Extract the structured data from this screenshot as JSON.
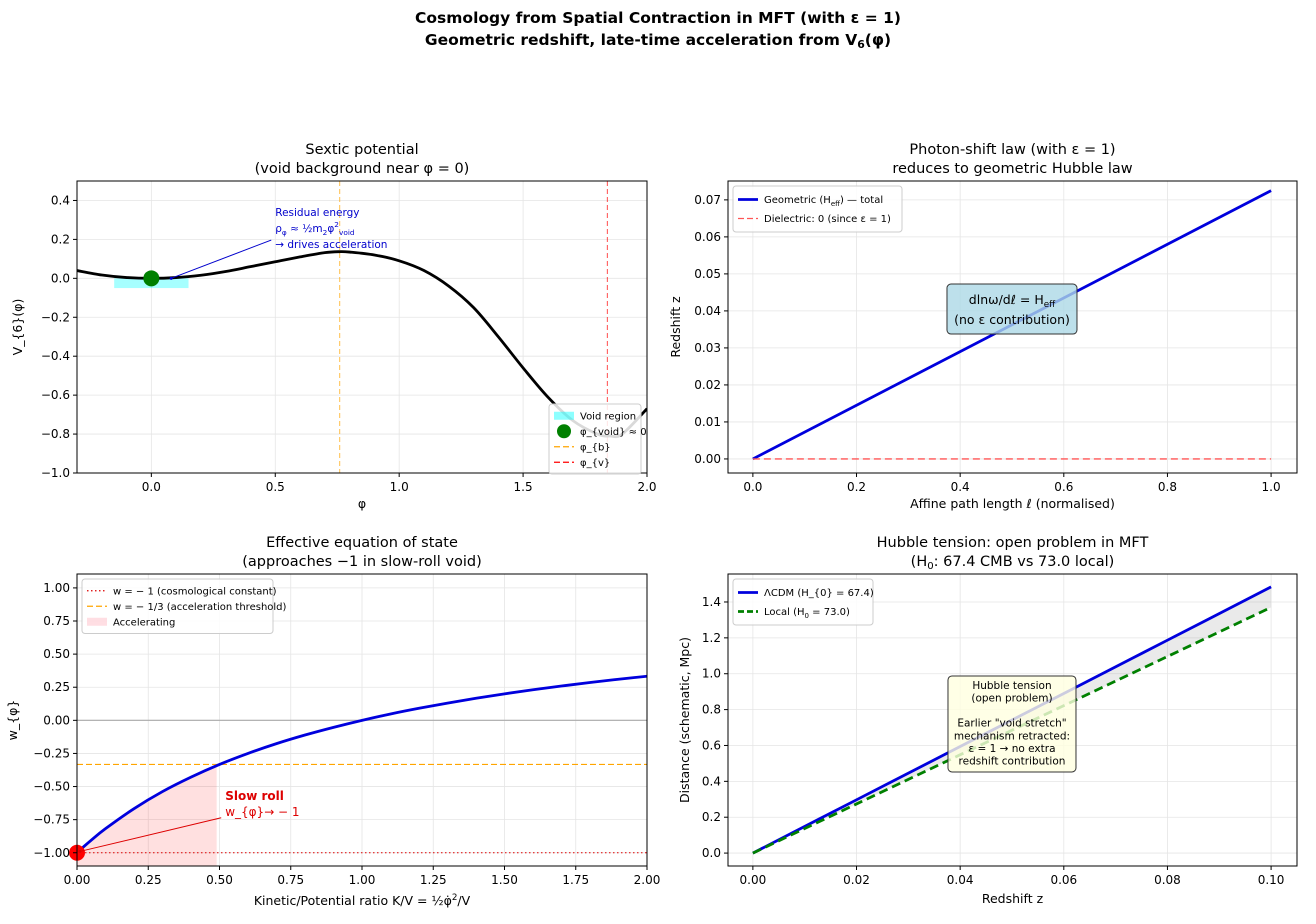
{
  "figure": {
    "title_line1": "Cosmology from Spatial Contraction in MFT (with ε = 1)",
    "title_line2": "Geometric redshift, late-time acceleration from V_{6}(φ)"
  },
  "chart_data": [
    {
      "type": "line",
      "title": [
        "Sextic potential",
        "(void background near φ = 0)"
      ],
      "xlabel": "φ",
      "ylabel": "V_{6}(φ)",
      "xlim": [
        -0.3,
        2.0
      ],
      "ylim": [
        -1.0,
        0.5
      ],
      "xticks": [
        0,
        0.5,
        1,
        1.5,
        2
      ],
      "xtick_labels": [
        "0.0",
        "0.5",
        "1.0",
        "1.5",
        "2.0"
      ],
      "yticks": [
        -1,
        -0.8,
        -0.6,
        -0.4,
        -0.2,
        0,
        0.2,
        0.4
      ],
      "ytick_labels": [
        "−1.0",
        "−0.8",
        "−0.6",
        "−0.4",
        "−0.2",
        "0.0",
        "0.2",
        "0.4"
      ],
      "grid": true,
      "series": [
        {
          "x": [
            -0.3,
            -0.2,
            -0.1,
            0,
            0.1,
            0.2,
            0.3,
            0.4,
            0.5,
            0.6,
            0.7,
            0.76,
            0.8,
            0.9,
            1.0,
            1.1,
            1.2,
            1.3,
            1.4,
            1.5,
            1.6,
            1.7,
            1.8,
            1.85,
            1.9,
            2.0
          ],
          "y": [
            0.04,
            0.017,
            0.004,
            0,
            0.004,
            0.016,
            0.035,
            0.06,
            0.085,
            0.11,
            0.132,
            0.137,
            0.135,
            0.12,
            0.09,
            0.04,
            -0.04,
            -0.15,
            -0.3,
            -0.46,
            -0.61,
            -0.73,
            -0.8,
            -0.81,
            -0.8,
            -0.67
          ],
          "color": "#000000",
          "style": "solid"
        }
      ],
      "spans": [
        {
          "x": [
            -0.15,
            0.15
          ],
          "y": [
            -0.05,
            0.0
          ],
          "color": "#00ffff",
          "opacity": 0.35
        }
      ],
      "vlines": [
        {
          "x": 0.76,
          "color": "#ffa500",
          "style": "dashed"
        },
        {
          "x": 1.84,
          "color": "#ff0000",
          "style": "dashed"
        }
      ],
      "points": [
        {
          "x": 0,
          "y": 0,
          "color": "#008000"
        }
      ],
      "annotations": [
        {
          "lines": [
            "Residual energy",
            "ρ_{φ} ≈ ½m_{2}φ^{2}_{void}",
            "→ drives acceleration"
          ],
          "xytext": [
            0.5,
            0.32
          ],
          "xy": [
            0.08,
            0.0
          ],
          "color": "#0000cc",
          "bold": false
        }
      ],
      "legend": {
        "position": "lower right",
        "entries": [
          {
            "label": "Void region",
            "kind": "patch",
            "color": "#00ffff"
          },
          {
            "label": "φ_{void} ≈ 0",
            "kind": "marker",
            "color": "#008000"
          },
          {
            "label": "φ_{b}",
            "kind": "dashed",
            "color": "#ffa500"
          },
          {
            "label": "φ_{v}",
            "kind": "dashed",
            "color": "#ff0000"
          }
        ]
      }
    },
    {
      "type": "line",
      "title": [
        "Photon-shift law (with ε = 1)",
        "reduces to geometric Hubble law"
      ],
      "xlabel": "Affine path length ℓ (normalised)",
      "ylabel": "Redshift z",
      "xlim": [
        -0.048,
        1.05
      ],
      "ylim": [
        -0.0038,
        0.0751
      ],
      "xticks": [
        0,
        0.2,
        0.4,
        0.6,
        0.8,
        1.0
      ],
      "xtick_labels": [
        "0.0",
        "0.2",
        "0.4",
        "0.6",
        "0.8",
        "1.0"
      ],
      "yticks": [
        0,
        0.01,
        0.02,
        0.03,
        0.04,
        0.05,
        0.06,
        0.07
      ],
      "ytick_labels": [
        "0.00",
        "0.01",
        "0.02",
        "0.03",
        "0.04",
        "0.05",
        "0.06",
        "0.07"
      ],
      "grid": true,
      "series": [
        {
          "x": [
            0,
            1
          ],
          "y": [
            0,
            0.0725
          ],
          "color": "#0000dd",
          "style": "solid"
        },
        {
          "x": [
            0,
            1
          ],
          "y": [
            0,
            0
          ],
          "color": "#ff5555",
          "style": "dashed"
        }
      ],
      "textbox": {
        "lines": [
          "dlnω/dℓ = H_{eff}",
          "(no ε contribution)"
        ],
        "center": [
          0.5,
          0.0405
        ],
        "fill": "#add8e6"
      },
      "legend": {
        "position": "upper left",
        "entries": [
          {
            "label": "Geometric (H_{eff}) — total",
            "kind": "solid",
            "color": "#0000dd"
          },
          {
            "label": "Dielectric: 0 (since ε = 1)",
            "kind": "dashed",
            "color": "#ff5555"
          }
        ]
      }
    },
    {
      "type": "line",
      "title": [
        "Effective equation of state",
        "(approaches −1 in slow-roll void)"
      ],
      "xlabel": "Kinetic/Potential ratio K/V = ½φ̇^{2}/V",
      "ylabel": "w_{φ}",
      "xlim": [
        0,
        2.0
      ],
      "ylim": [
        -1.1,
        1.105
      ],
      "xticks": [
        0,
        0.25,
        0.5,
        0.75,
        1.0,
        1.25,
        1.5,
        1.75,
        2.0
      ],
      "xtick_labels": [
        "0.00",
        "0.25",
        "0.50",
        "0.75",
        "1.00",
        "1.25",
        "1.50",
        "1.75",
        "2.00"
      ],
      "yticks": [
        -1,
        -0.75,
        -0.5,
        -0.25,
        0,
        0.25,
        0.5,
        0.75,
        1.0
      ],
      "ytick_labels": [
        "−1.00",
        "−0.75",
        "−0.50",
        "−0.25",
        "0.00",
        "0.25",
        "0.50",
        "0.75",
        "1.00"
      ],
      "grid": true,
      "fill_under": {
        "x_range": [
          0,
          0.49
        ],
        "color": "#ff0000",
        "opacity": 0.12
      },
      "series": [
        {
          "x": [
            0,
            0.02,
            0.05,
            0.1,
            0.2,
            0.3,
            0.4,
            0.5,
            0.6,
            0.7,
            0.8,
            0.9,
            1.0,
            1.1,
            1.2,
            1.3,
            1.4,
            1.5,
            1.6,
            1.7,
            1.8,
            1.9,
            2.0
          ],
          "y": [
            -1,
            -0.961,
            -0.905,
            -0.818,
            -0.667,
            -0.538,
            -0.429,
            -0.333,
            -0.25,
            -0.176,
            -0.111,
            -0.053,
            0,
            0.048,
            0.091,
            0.13,
            0.167,
            0.2,
            0.231,
            0.259,
            0.286,
            0.31,
            0.333
          ],
          "color": "#0000dd",
          "style": "solid"
        }
      ],
      "hlines": [
        {
          "y": 0,
          "color": "#aaaaaa",
          "style": "solid"
        },
        {
          "y": -1,
          "color": "#dd0000",
          "style": "dotted"
        },
        {
          "y": -0.3333,
          "color": "#ffa500",
          "style": "dashed"
        }
      ],
      "points": [
        {
          "x": 0,
          "y": -1,
          "color": "#ff0000"
        }
      ],
      "annotations": [
        {
          "lines": [
            "Slow roll",
            "w_{φ}→ − 1"
          ],
          "xytext": [
            0.52,
            -0.6
          ],
          "xy": [
            0.01,
            -0.99
          ],
          "color": "#dd0000",
          "bold": true
        }
      ],
      "legend": {
        "position": "upper left",
        "entries": [
          {
            "label": "w = − 1 (cosmological constant)",
            "kind": "dotted",
            "color": "#dd0000"
          },
          {
            "label": "w = − 1/3 (acceleration threshold)",
            "kind": "dashed",
            "color": "#ffa500"
          },
          {
            "label": "Accelerating",
            "kind": "patch",
            "color": "#ffb6c1"
          }
        ]
      }
    },
    {
      "type": "line",
      "title": [
        "Hubble tension: open problem in MFT",
        "(H_{0}: 67.4 CMB vs 73.0 local)"
      ],
      "xlabel": "Redshift z",
      "ylabel": "Distance (schematic, Mpc)",
      "xlim": [
        -0.0048,
        0.105
      ],
      "ylim": [
        -0.072,
        1.556
      ],
      "xticks": [
        0,
        0.02,
        0.04,
        0.06,
        0.08,
        0.1
      ],
      "xtick_labels": [
        "0.00",
        "0.02",
        "0.04",
        "0.06",
        "0.08",
        "0.10"
      ],
      "yticks": [
        0,
        0.2,
        0.4,
        0.6,
        0.8,
        1.0,
        1.2,
        1.4
      ],
      "ytick_labels": [
        "0.0",
        "0.2",
        "0.4",
        "0.6",
        "0.8",
        "1.0",
        "1.2",
        "1.4"
      ],
      "grid": true,
      "fill_between": {
        "color": "#888888",
        "opacity": 0.18
      },
      "series": [
        {
          "x": [
            0,
            0.02,
            0.04,
            0.06,
            0.08,
            0.1
          ],
          "y": [
            0,
            0.297,
            0.594,
            0.89,
            1.187,
            1.484
          ],
          "color": "#0000dd",
          "style": "solid"
        },
        {
          "x": [
            0,
            0.02,
            0.04,
            0.06,
            0.08,
            0.1
          ],
          "y": [
            0,
            0.274,
            0.548,
            0.822,
            1.096,
            1.37
          ],
          "color": "#008000",
          "style": "dashed"
        }
      ],
      "textbox": {
        "lines": [
          "Hubble tension",
          "(open problem)",
          "",
          "Earlier \"void stretch\"",
          "mechanism retracted:",
          "ε = 1 → no extra",
          "redshift contribution"
        ],
        "center": [
          0.05,
          0.72
        ],
        "fill": "#ffffe0"
      },
      "legend": {
        "position": "upper left",
        "entries": [
          {
            "label": "ΛCDM (H_{0} = 67.4)",
            "kind": "solid",
            "color": "#0000dd"
          },
          {
            "label": "Local (H_{0} = 73.0)",
            "kind": "dashed",
            "color": "#008000"
          }
        ]
      }
    }
  ]
}
